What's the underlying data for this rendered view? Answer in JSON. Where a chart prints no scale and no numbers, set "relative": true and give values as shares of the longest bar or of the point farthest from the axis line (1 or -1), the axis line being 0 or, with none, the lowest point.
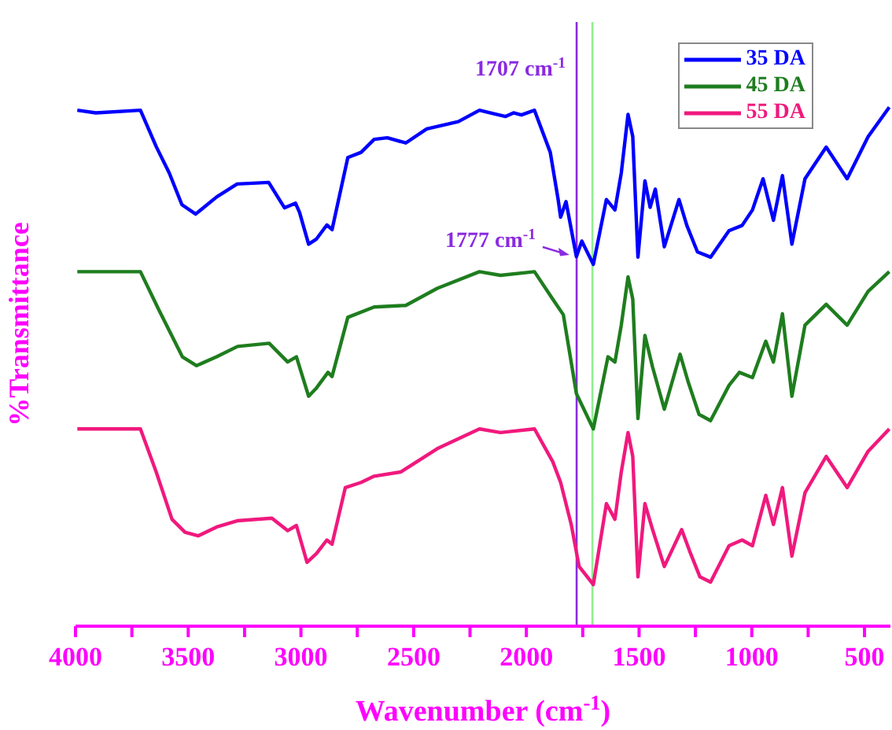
{
  "chart_data": {
    "type": "line",
    "relative": true,
    "xlabel": "Wavenumber (cm$^{-1}$)",
    "ylabel": "%Transmittance",
    "xlim": [
      4000,
      385
    ],
    "xticks": [
      4000,
      {
        "value": 3750,
        "label": null
      },
      3500,
      {
        "value": 3250,
        "label": null
      },
      3000,
      {
        "value": 2750,
        "label": null
      },
      2500,
      {
        "value": 2250,
        "label": null
      },
      2000,
      {
        "value": 1750,
        "label": null
      },
      1500,
      {
        "value": 1250,
        "label": null
      },
      1000,
      {
        "value": 750,
        "label": null
      },
      500
    ],
    "legend": "top right",
    "grid": false,
    "marker": "none",
    "line_style": "solid",
    "ref_lines": [
      {
        "axis": "x",
        "value": 1777,
        "color": "#8a2be2"
      },
      {
        "axis": "x",
        "value": 1707,
        "color": "#90ee90"
      }
    ],
    "annotations": [
      "1707 cm$^{-1}$",
      "1777 cm$^{-1}$"
    ],
    "series": [
      {
        "name": "35 DA",
        "color": "#0000ff",
        "x": [
          3992,
          3910,
          3712,
          3642,
          3584,
          3528,
          3467,
          3374,
          3283,
          3143,
          3073,
          3024,
          3006,
          2966,
          2931,
          2885,
          2862,
          2792,
          2733,
          2675,
          2617,
          2535,
          2442,
          2302,
          2208,
          2162,
          2092,
          2057,
          2022,
          1964,
          1894,
          1859,
          1848,
          1824,
          1778,
          1754,
          1703,
          1645,
          1607,
          1579,
          1549,
          1528,
          1505,
          1474,
          1451,
          1428,
          1388,
          1323,
          1288,
          1241,
          1183,
          1101,
          1043,
          997,
          950,
          904,
          864,
          822,
          764,
          670,
          577,
          484,
          390
        ],
        "values": [
          0.994,
          0.989,
          0.994,
          0.924,
          0.873,
          0.812,
          0.794,
          0.827,
          0.852,
          0.855,
          0.806,
          0.815,
          0.797,
          0.736,
          0.746,
          0.773,
          0.764,
          0.903,
          0.913,
          0.938,
          0.941,
          0.931,
          0.958,
          0.972,
          0.994,
          0.989,
          0.982,
          0.989,
          0.985,
          0.994,
          0.913,
          0.822,
          0.788,
          0.818,
          0.712,
          0.742,
          0.697,
          0.822,
          0.802,
          0.873,
          0.986,
          0.943,
          0.711,
          0.858,
          0.807,
          0.842,
          0.731,
          0.822,
          0.772,
          0.721,
          0.711,
          0.762,
          0.772,
          0.802,
          0.862,
          0.782,
          0.868,
          0.736,
          0.862,
          0.923,
          0.862,
          0.943,
          1
        ]
      },
      {
        "name": "45 DA",
        "color": "#1e7d1e",
        "x": [
          3992,
          3712,
          3631,
          3526,
          3463,
          3374,
          3281,
          3141,
          3059,
          3020,
          2966,
          2931,
          2880,
          2862,
          2792,
          2675,
          2535,
          2395,
          2208,
          2115,
          1964,
          1883,
          1836,
          1778,
          1703,
          1638,
          1607,
          1579,
          1549,
          1528,
          1505,
          1474,
          1440,
          1388,
          1318,
          1281,
          1234,
          1183,
          1101,
          1055,
          997,
          938,
          904,
          864,
          822,
          764,
          670,
          577,
          484,
          390
        ],
        "values": [
          0.683,
          0.683,
          0.61,
          0.519,
          0.502,
          0.519,
          0.539,
          0.545,
          0.509,
          0.519,
          0.443,
          0.459,
          0.489,
          0.481,
          0.595,
          0.615,
          0.618,
          0.651,
          0.683,
          0.676,
          0.683,
          0.63,
          0.6,
          0.448,
          0.38,
          0.519,
          0.509,
          0.58,
          0.673,
          0.63,
          0.4,
          0.56,
          0.499,
          0.418,
          0.524,
          0.469,
          0.408,
          0.396,
          0.464,
          0.489,
          0.479,
          0.549,
          0.509,
          0.602,
          0.443,
          0.58,
          0.62,
          0.58,
          0.645,
          0.683
        ]
      },
      {
        "name": "55 DA",
        "color": "#f0197d",
        "x": [
          3992,
          3712,
          3642,
          3572,
          3514,
          3456,
          3374,
          3283,
          3129,
          3059,
          3020,
          2973,
          2931,
          2885,
          2862,
          2803,
          2733,
          2675,
          2558,
          2395,
          2208,
          2115,
          1964,
          1883,
          1848,
          1801,
          1766,
          1703,
          1645,
          1607,
          1579,
          1549,
          1528,
          1505,
          1474,
          1440,
          1388,
          1311,
          1276,
          1230,
          1183,
          1101,
          1043,
          997,
          938,
          904,
          864,
          822,
          764,
          670,
          577,
          484,
          390
        ],
        "values": [
          0.38,
          0.38,
          0.297,
          0.206,
          0.181,
          0.174,
          0.191,
          0.203,
          0.208,
          0.184,
          0.194,
          0.123,
          0.14,
          0.166,
          0.158,
          0.267,
          0.277,
          0.289,
          0.297,
          0.342,
          0.38,
          0.373,
          0.38,
          0.317,
          0.277,
          0.196,
          0.115,
          0.08,
          0.236,
          0.206,
          0.297,
          0.373,
          0.327,
          0.095,
          0.236,
          0.186,
          0.115,
          0.186,
          0.145,
          0.095,
          0.085,
          0.155,
          0.166,
          0.155,
          0.252,
          0.196,
          0.267,
          0.135,
          0.257,
          0.327,
          0.267,
          0.337,
          0.38
        ]
      }
    ]
  }
}
